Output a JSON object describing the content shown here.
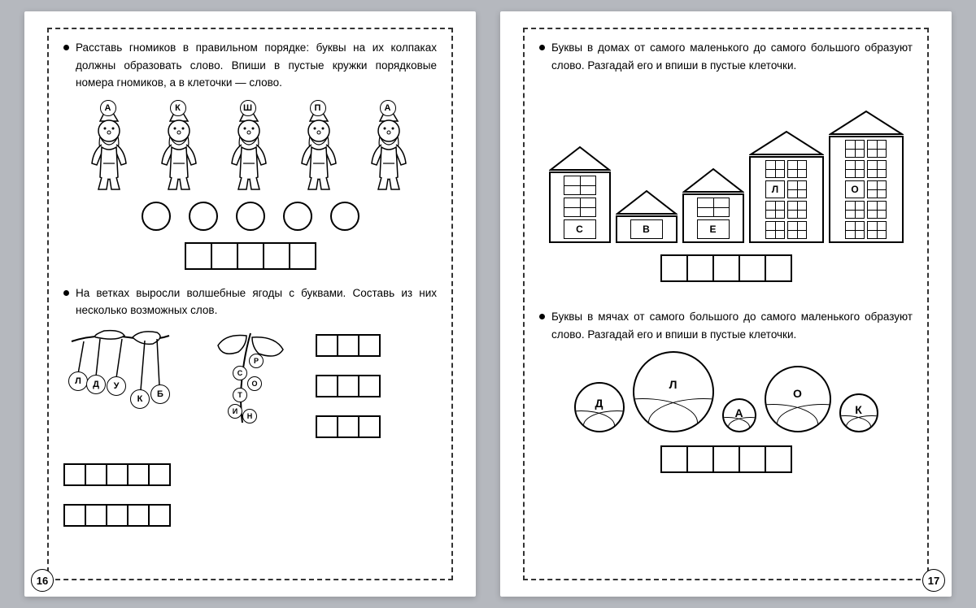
{
  "left_page": {
    "number": "16",
    "task1": {
      "text": "Расставь гномиков в правильном порядке: буквы на их колпаках должны образовать слово. Впиши в пустые кружки порядковые номера гномиков, а в клеточки — слово.",
      "gnome_letters": [
        "А",
        "К",
        "Ш",
        "П",
        "А"
      ],
      "circles_count": 5,
      "boxes_count": 5
    },
    "task2": {
      "text": "На ветках выросли волшебные ягоды с буквами. Составь из них несколько возможных слов.",
      "cherry_letters": [
        "Л",
        "Д",
        "У",
        "К",
        "Б"
      ],
      "currant_letters": [
        "Р",
        "С",
        "О",
        "Т",
        "И",
        "Н"
      ],
      "right_box_rows": [
        3,
        3,
        3
      ],
      "bottom_box_rows": [
        5,
        5
      ]
    }
  },
  "right_page": {
    "number": "17",
    "task1": {
      "text": "Буквы в домах от самого маленького до самого большого образуют слово. Разгадай его и впиши в пустые клеточки.",
      "houses": [
        {
          "floors": 3,
          "letter": "С",
          "wide": false
        },
        {
          "floors": 1,
          "letter": "В",
          "wide": false
        },
        {
          "floors": 2,
          "letter": "Е",
          "wide": false
        },
        {
          "floors": 4,
          "letter": "Л",
          "wide": true
        },
        {
          "floors": 5,
          "letter": "О",
          "wide": true
        }
      ],
      "boxes_count": 5
    },
    "task2": {
      "text": "Буквы в мячах от самого большого до самого маленького образуют слово. Разгадай его и впиши в пустые клеточки.",
      "balls": [
        {
          "letter": "Д",
          "size": 62
        },
        {
          "letter": "Л",
          "size": 100
        },
        {
          "letter": "А",
          "size": 42
        },
        {
          "letter": "О",
          "size": 82
        },
        {
          "letter": "К",
          "size": 48
        }
      ],
      "boxes_count": 5
    }
  },
  "colors": {
    "background": "#b5b8be",
    "page": "#ffffff",
    "ink": "#000000"
  }
}
